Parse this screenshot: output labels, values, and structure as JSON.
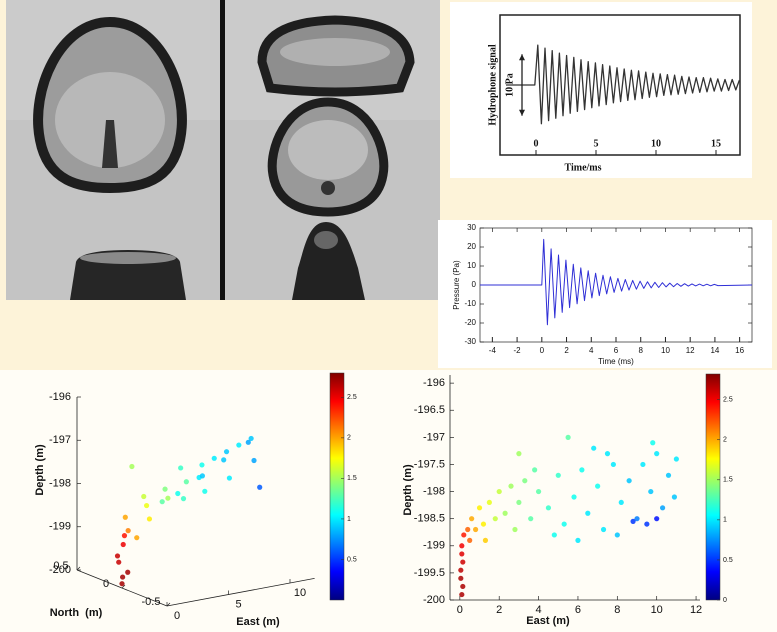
{
  "chart_data": [
    {
      "type": "line",
      "y_label": "Hydrophone signal",
      "scale_label": "10 Pa",
      "scale_bar": 10,
      "x_label": "Time/ms",
      "x": [
        -2.5,
        -0.1,
        0.15,
        0.45,
        0.75,
        1.05,
        1.35,
        1.65,
        1.95,
        2.25,
        2.55,
        2.85,
        3.15,
        3.45,
        3.75,
        4.05,
        4.35,
        4.65,
        4.95,
        5.25,
        5.55,
        5.85,
        6.15,
        6.45,
        6.75,
        7.05,
        7.35,
        7.65,
        7.95,
        8.25,
        8.55,
        8.85,
        9.15,
        9.45,
        9.75,
        10.05,
        10.35,
        10.65,
        10.95,
        11.25,
        11.55,
        11.85,
        12.15,
        12.45,
        12.75,
        13.05,
        13.35,
        13.65,
        13.95,
        14.25,
        14.55,
        14.85,
        15.15,
        15.45,
        15.75,
        16.05,
        16.35,
        16.65,
        16.95
      ],
      "series": [
        {
          "color": "#333333",
          "values": [
            0,
            0,
            6.5,
            -6.3,
            6.0,
            -5.8,
            5.6,
            -5.4,
            5.2,
            -5.0,
            4.8,
            -4.6,
            4.5,
            -4.3,
            4.1,
            -4.0,
            3.8,
            -3.7,
            3.6,
            -3.4,
            3.3,
            -3.2,
            3.1,
            -2.9,
            2.8,
            -2.7,
            2.6,
            -2.5,
            2.4,
            -2.4,
            2.3,
            -2.2,
            2.1,
            -2.0,
            1.9,
            -1.9,
            1.8,
            -1.7,
            1.7,
            -1.6,
            1.6,
            -1.5,
            1.4,
            -1.4,
            1.3,
            -1.3,
            1.2,
            -1.2,
            1.2,
            -1.1,
            1.1,
            -1.0,
            1.0,
            -1.0,
            0.9,
            -0.9,
            0.9,
            -0.8,
            0.8
          ]
        }
      ],
      "xlim": [
        -3,
        17
      ],
      "xticks": [
        0,
        5,
        10,
        15
      ],
      "ylim": [
        -11.4,
        11.4
      ]
    },
    {
      "type": "line",
      "y_label": "Pressure (Pa)",
      "x_label": "Time (ms)",
      "x": [
        -5,
        0,
        0.15,
        0.45,
        0.75,
        1.05,
        1.35,
        1.65,
        1.95,
        2.25,
        2.55,
        2.85,
        3.15,
        3.45,
        3.75,
        4.05,
        4.35,
        4.65,
        4.95,
        5.25,
        5.55,
        5.85,
        6.15,
        6.45,
        6.75,
        7.05,
        7.35,
        7.65,
        7.95,
        8.25,
        8.55,
        8.85,
        9.15,
        9.45,
        9.75,
        10.05,
        10.35,
        10.65,
        10.95,
        11.25,
        11.55,
        11.85,
        12.15,
        12.45,
        12.75,
        13.05,
        13.35,
        13.65,
        13.95,
        14.25,
        17
      ],
      "series": [
        {
          "color": "#2f2fd6",
          "values": [
            0,
            0,
            24,
            -20.9,
            19.0,
            -17.3,
            15.8,
            -14.4,
            13.1,
            -11.9,
            10.9,
            -9.9,
            9.0,
            -8.2,
            7.5,
            -6.8,
            6.2,
            -5.6,
            5.1,
            -4.7,
            4.3,
            -3.9,
            3.5,
            -3.2,
            2.9,
            -2.7,
            2.4,
            -2.2,
            2.0,
            -1.8,
            1.7,
            -1.5,
            1.4,
            -1.3,
            1.2,
            -1.0,
            1.0,
            -0.9,
            0.8,
            -0.7,
            0.7,
            -0.6,
            0.6,
            -0.5,
            0.5,
            -0.4,
            0.4,
            -0.4,
            0.3,
            -0.3,
            0
          ]
        }
      ],
      "xlim": [
        -5,
        17
      ],
      "xticks": [
        -4,
        -2,
        0,
        2,
        4,
        6,
        8,
        10,
        12,
        14,
        16
      ],
      "ylim": [
        -30,
        30
      ],
      "yticks": [
        -30,
        -20,
        -10,
        0,
        10,
        20,
        30
      ]
    },
    {
      "type": "scatter3d",
      "x_label": "East (m)",
      "y_label": "North  (m)",
      "z_label": "Depth (m)",
      "x": [
        0,
        0.1,
        0,
        0.1,
        0.2,
        0.05,
        0.1,
        0.5,
        1,
        1.5,
        2,
        1.2,
        2.5,
        3,
        3.5,
        4,
        4.5,
        5,
        5.5,
        6,
        6.5,
        7,
        7.5,
        8,
        8.5,
        9,
        9.5,
        10,
        10.5,
        11,
        6,
        8,
        3,
        9
      ],
      "y": [
        0,
        -0.05,
        0.05,
        0,
        0,
        0,
        0.05,
        0,
        0.1,
        -0.1,
        0,
        0,
        0.1,
        -0.1,
        0,
        0.1,
        -0.1,
        0,
        0.1,
        -0.1,
        0,
        0.1,
        0,
        -0.1,
        0,
        0.1,
        0,
        -0.1,
        0,
        0.1,
        0.2,
        0.2,
        0.3,
        -0.3
      ],
      "values": [
        -199.9,
        -199.6,
        -199.3,
        -199.0,
        -198.8,
        -199.75,
        -199.45,
        -198.7,
        -198.5,
        -198.4,
        -198.2,
        -198.9,
        -198.1,
        -198.0,
        -197.9,
        -198.3,
        -197.7,
        -198.2,
        -197.6,
        -198.0,
        -197.5,
        -197.9,
        -197.4,
        -197.8,
        -197.3,
        -197.6,
        -197.2,
        -197.5,
        -197.1,
        -197.3,
        -198.3,
        -198.0,
        -197.6,
        -197.9
      ],
      "color_values": [
        2.7,
        2.7,
        2.6,
        2.5,
        2.4,
        2.7,
        2.6,
        2.1,
        2.0,
        1.8,
        1.7,
        2.0,
        1.6,
        1.5,
        1.4,
        1.3,
        1.3,
        1.2,
        1.2,
        1.1,
        1.1,
        1.0,
        1.0,
        1.0,
        0.9,
        0.9,
        1.0,
        0.8,
        0.9,
        0.8,
        1.1,
        0.9,
        1.5,
        0.6
      ],
      "xlim": [
        0,
        12
      ],
      "xticks": [
        0,
        5,
        10
      ],
      "ylim": [
        -0.5,
        0.5
      ],
      "yticks": [
        0.5,
        0,
        -0.5
      ],
      "zlim": [
        -200,
        -196
      ],
      "zticks": [
        -196,
        -197,
        -198,
        -199,
        -200
      ],
      "clim": [
        0,
        2.8
      ],
      "cticks": [
        0.5,
        1,
        1.5,
        2,
        2.5
      ]
    },
    {
      "type": "scatter",
      "x_label": "East (m)",
      "y_label": "Depth (m)",
      "x": [
        0.1,
        0.05,
        0.15,
        0.1,
        0.2,
        0.05,
        0.1,
        0.15,
        0.4,
        0.6,
        0.8,
        1.0,
        1.2,
        1.5,
        1.8,
        2.0,
        0.5,
        1.3,
        2.3,
        2.6,
        3.0,
        3.3,
        3.6,
        4.0,
        2.8,
        3.8,
        4.5,
        5.0,
        5.3,
        5.8,
        6.2,
        6.5,
        7.0,
        7.3,
        7.8,
        8.2,
        8.6,
        9.0,
        9.3,
        9.7,
        10.0,
        10.3,
        10.6,
        10.9,
        4.8,
        6.0,
        8.0,
        9.5,
        10.0,
        8.8,
        11.0,
        7.5,
        6.8,
        9.8,
        5.5,
        3.0
      ],
      "values": [
        -199.9,
        -199.6,
        -199.3,
        -199.0,
        -198.8,
        -199.45,
        -199.15,
        -199.75,
        -198.7,
        -198.5,
        -198.7,
        -198.3,
        -198.6,
        -198.2,
        -198.5,
        -198.0,
        -198.9,
        -198.9,
        -198.4,
        -197.9,
        -198.2,
        -197.8,
        -198.5,
        -198.0,
        -198.7,
        -197.6,
        -198.3,
        -197.7,
        -198.6,
        -198.1,
        -197.6,
        -198.4,
        -197.9,
        -198.7,
        -197.5,
        -198.2,
        -197.8,
        -198.5,
        -197.5,
        -198.0,
        -197.3,
        -198.3,
        -197.7,
        -198.1,
        -198.8,
        -198.9,
        -198.8,
        -198.6,
        -198.5,
        -198.55,
        -197.4,
        -197.3,
        -197.2,
        -197.1,
        -197.0,
        -197.3
      ],
      "color_values": [
        2.7,
        2.7,
        2.6,
        2.5,
        2.4,
        2.65,
        2.55,
        2.7,
        2.2,
        2.0,
        2.0,
        1.8,
        1.8,
        1.7,
        1.6,
        1.6,
        2.2,
        1.9,
        1.5,
        1.5,
        1.4,
        1.4,
        1.3,
        1.3,
        1.5,
        1.3,
        1.2,
        1.2,
        1.1,
        1.1,
        1.1,
        1.0,
        1.1,
        1.0,
        1.0,
        1.0,
        0.9,
        0.7,
        1.0,
        0.9,
        1.0,
        0.8,
        0.9,
        0.9,
        1.1,
        1.0,
        0.9,
        0.5,
        0.4,
        0.5,
        1.0,
        1.0,
        1.0,
        1.1,
        1.3,
        1.5
      ],
      "xlim": [
        -0.5,
        12.2
      ],
      "xticks": [
        0,
        2,
        4,
        6,
        8,
        10,
        12
      ],
      "ylim": [
        -200,
        -195.85
      ],
      "yticks": [
        -196,
        -196.5,
        -197,
        -197.5,
        -198,
        -198.5,
        -199,
        -199.5,
        -200
      ],
      "clim": [
        0,
        2.82
      ],
      "cticks": [
        0,
        0.5,
        1,
        1.5,
        2,
        2.5
      ]
    }
  ]
}
